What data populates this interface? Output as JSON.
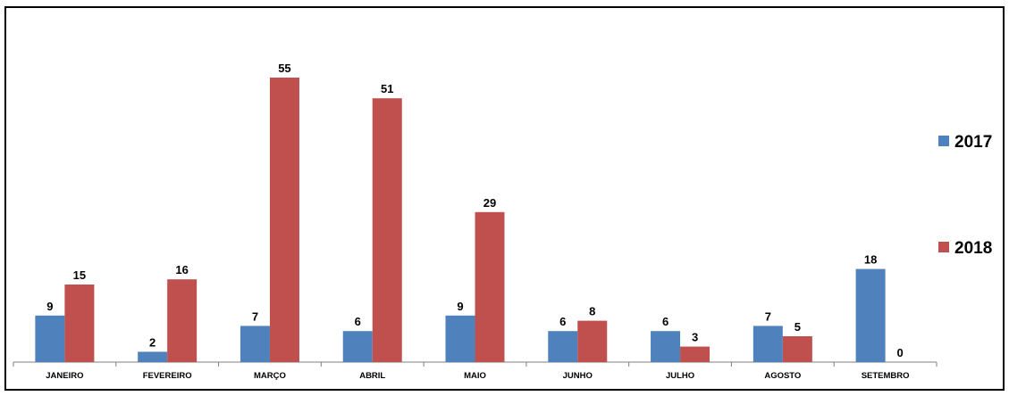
{
  "chart_data": {
    "type": "bar",
    "categories": [
      "JANEIRO",
      "FEVEREIRO",
      "MARÇO",
      "ABRIL",
      "MAIO",
      "JUNHO",
      "JULHO",
      "AGOSTO",
      "SETEMBRO"
    ],
    "series": [
      {
        "name": "2017",
        "color": "#4F81BD",
        "values": [
          9,
          2,
          7,
          6,
          9,
          6,
          6,
          7,
          18
        ]
      },
      {
        "name": "2018",
        "color": "#C0504D",
        "values": [
          15,
          16,
          55,
          51,
          29,
          8,
          3,
          5,
          0
        ]
      }
    ],
    "title": "",
    "xlabel": "",
    "ylabel": "",
    "ylim": [
      0,
      60
    ],
    "grid": false,
    "data_labels": true,
    "legend_position": "right"
  }
}
